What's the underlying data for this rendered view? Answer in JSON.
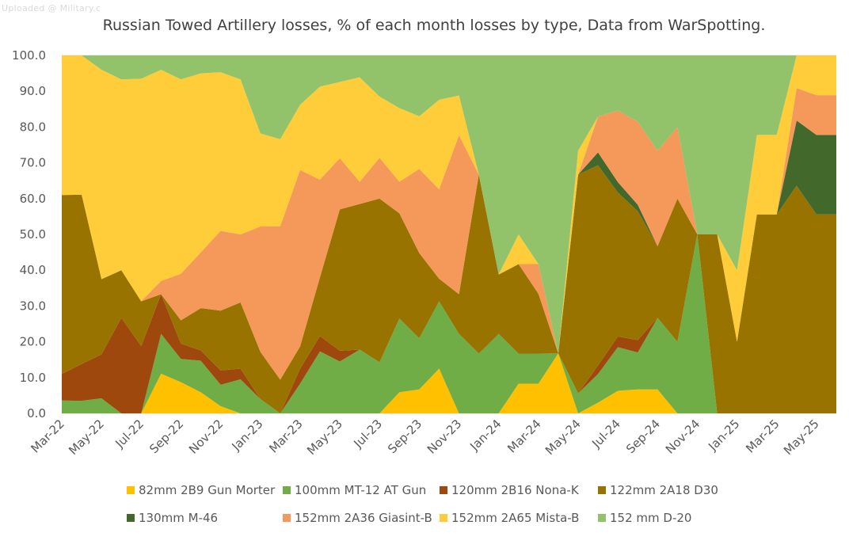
{
  "watermark": "Uploaded @ Military.c",
  "chart_data": {
    "type": "area",
    "stacked": true,
    "percent_stacked": true,
    "title": "Russian Towed Artillery losses, % of each month losses by type, Data from WarSpotting.",
    "xlabel": "",
    "ylabel": "",
    "ylim": [
      0,
      100
    ],
    "yticks": [
      "0.0",
      "10.0",
      "20.0",
      "30.0",
      "40.0",
      "50.0",
      "60.0",
      "70.0",
      "80.0",
      "90.0",
      "100.0"
    ],
    "grid": true,
    "legend_position": "bottom",
    "x": [
      "Mar-22",
      "Apr-22",
      "May-22",
      "Jun-22",
      "Jul-22",
      "Aug-22",
      "Sep-22",
      "Oct-22",
      "Nov-22",
      "Dec-22",
      "Jan-23",
      "Feb-23",
      "Mar-23",
      "Apr-23",
      "May-23",
      "Jun-23",
      "Jul-23",
      "Aug-23",
      "Sep-23",
      "Oct-23",
      "Nov-23",
      "Dec-23",
      "Jan-24",
      "Feb-24",
      "Mar-24",
      "Apr-24",
      "May-24",
      "Jun-24",
      "Jul-24",
      "Aug-24",
      "Sep-24",
      "Oct-24",
      "Nov-24",
      "Dec-24",
      "Jan-25",
      "Feb-25",
      "Mar-25",
      "Apr-25",
      "May-25",
      "Jun-25"
    ],
    "x_tick_labels": [
      "Mar-22",
      "May-22",
      "Jul-22",
      "Sep-22",
      "Nov-22",
      "Jan-23",
      "Mar-23",
      "May-23",
      "Jul-23",
      "Sep-23",
      "Nov-23",
      "Jan-24",
      "Mar-24",
      "May-24",
      "Jul-24",
      "Sep-24",
      "Nov-24",
      "Jan-25",
      "Mar-25",
      "May-25"
    ],
    "series": [
      {
        "name": "82mm 2B9 Gun Morter",
        "color": "#ffc000",
        "values": [
          0,
          0,
          0,
          0,
          0,
          11.1,
          8.7,
          5.9,
          2,
          0,
          0,
          0,
          0,
          0,
          0,
          0,
          0,
          5.9,
          6.7,
          12.5,
          0,
          0,
          0,
          8.3,
          8.3,
          6.7,
          0,
          3,
          6.3,
          6.7,
          6.7,
          0,
          0,
          0,
          0,
          0,
          0,
          0,
          0,
          0
        ]
      },
      {
        "name": "100mm MT-12 AT Gun",
        "color": "#70ad47",
        "values": [
          3.6,
          3.5,
          4.2,
          0,
          0,
          11.1,
          6.5,
          8.8,
          6,
          9.5,
          4,
          0,
          8.3,
          17.3,
          14.5,
          17.8,
          14.3,
          20.6,
          14.3,
          18.8,
          22.2,
          16.7,
          22.2,
          8.4,
          8.4,
          0,
          5.6,
          8,
          12.2,
          10.3,
          20,
          20,
          50,
          0,
          0,
          0,
          0,
          0,
          0,
          0
        ]
      },
      {
        "name": "120mm 2B16 Nona-K",
        "color": "#9e480e",
        "values": [
          7.4,
          10.3,
          12.3,
          26.7,
          18.8,
          11.1,
          4.3,
          2.9,
          4,
          3,
          0,
          0,
          4.2,
          4.3,
          3,
          0,
          0,
          0,
          0,
          0,
          0,
          0,
          0,
          0,
          0,
          0,
          0,
          2.4,
          3,
          3.5,
          0,
          0,
          0,
          0,
          0,
          0,
          0,
          0,
          0,
          0
        ]
      },
      {
        "name": "122mm 2A18 D30",
        "color": "#997300",
        "values": [
          50,
          47.3,
          21,
          13.3,
          12.5,
          0,
          6.5,
          11.8,
          16.7,
          18.5,
          13.2,
          9.4,
          6.2,
          16.4,
          39.5,
          40.7,
          45.7,
          29.4,
          23.8,
          6.3,
          11.1,
          50,
          16.6,
          25,
          16.7,
          0,
          61.1,
          55.9,
          40.2,
          36,
          20,
          40,
          0,
          50,
          20,
          55.6,
          55.6,
          63.6,
          55.6,
          55.6
        ]
      },
      {
        "name": "130mm M-46",
        "color": "#43682b",
        "values": [
          0,
          0,
          0,
          0,
          0,
          0,
          0,
          0,
          0,
          0,
          0,
          0,
          0,
          0,
          0,
          0,
          0,
          0,
          0,
          0,
          0,
          0,
          0,
          0,
          0,
          0,
          0,
          3.6,
          2.9,
          1.8,
          0,
          0,
          0,
          0,
          0,
          0,
          0,
          18.2,
          22.2,
          22.2
        ]
      },
      {
        "name": "152mm 2A36 Giasint-B",
        "color": "#f4995a",
        "values": [
          0,
          0,
          0,
          0,
          0,
          3.7,
          13,
          15.6,
          22.3,
          19,
          35,
          42.9,
          49.3,
          27.3,
          14.3,
          6.2,
          11.4,
          8.8,
          23.5,
          25,
          44.4,
          0,
          0,
          0,
          8.3,
          0,
          0,
          10,
          20,
          23.2,
          26.7,
          20,
          0,
          0,
          0,
          0,
          0,
          9.1,
          11.1,
          11.1
        ]
      },
      {
        "name": "152mm 2A65 Mista-B",
        "color": "#ffcd3a",
        "values": [
          39,
          38.9,
          58.5,
          53.3,
          62.2,
          59,
          54.3,
          50,
          44.3,
          43.3,
          26,
          24.3,
          18.2,
          26,
          21.3,
          29.2,
          17.1,
          20.6,
          14.7,
          25,
          11.1,
          0,
          0,
          8.3,
          0,
          0,
          6.7,
          0,
          0,
          0,
          0,
          0,
          0,
          0,
          20,
          22.2,
          22.2,
          9.1,
          11.1,
          11.1
        ]
      },
      {
        "name": "152 mm D-20",
        "color": "#92c36a",
        "values": [
          0,
          0,
          4,
          6.7,
          6.5,
          4,
          6.7,
          5,
          4.7,
          6.7,
          21.8,
          23.4,
          13.8,
          8.7,
          7.4,
          6.1,
          11.5,
          14.7,
          17,
          12.4,
          11.2,
          33.3,
          61.2,
          50,
          58.3,
          33.3,
          26.6,
          17.1,
          15.4,
          18.5,
          26.6,
          20,
          50,
          50,
          60,
          22.2,
          22.2,
          0,
          0,
          0
        ]
      }
    ]
  }
}
